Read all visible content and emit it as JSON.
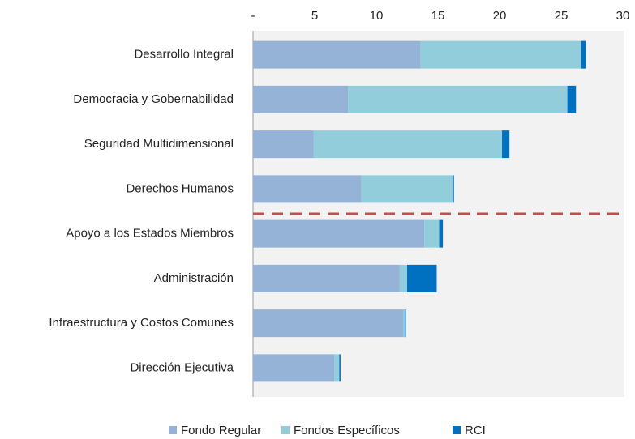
{
  "chart_data": {
    "type": "stacked-barh",
    "categories": [
      "Desarrollo Integral",
      "Democracia y Gobernabilidad",
      "Seguridad Multidimensional",
      "Derechos Humanos",
      "Apoyo a los Estados Miembros",
      "Administración",
      "Infraestructura y Costos Comunes",
      "Dirección Ejecutiva"
    ],
    "series": [
      {
        "name": "Fondo Regular",
        "color": "#95b3d7",
        "values": [
          13.6,
          7.7,
          4.9,
          8.8,
          13.9,
          11.9,
          12.2,
          6.6
        ]
      },
      {
        "name": "Fondos Específicos",
        "color": "#92cddc",
        "values": [
          13.0,
          17.8,
          15.3,
          7.4,
          1.2,
          0.6,
          0.1,
          0.4
        ]
      },
      {
        "name": "RCI",
        "color": "#0070c0",
        "values": [
          0.4,
          0.7,
          0.6,
          0.1,
          0.3,
          2.4,
          0.1,
          0.1
        ]
      }
    ],
    "xlim": [
      0,
      30
    ],
    "xticks": [
      {
        "value": 0,
        "label": "-"
      },
      5,
      10,
      15,
      20,
      25,
      30
    ]
  }
}
